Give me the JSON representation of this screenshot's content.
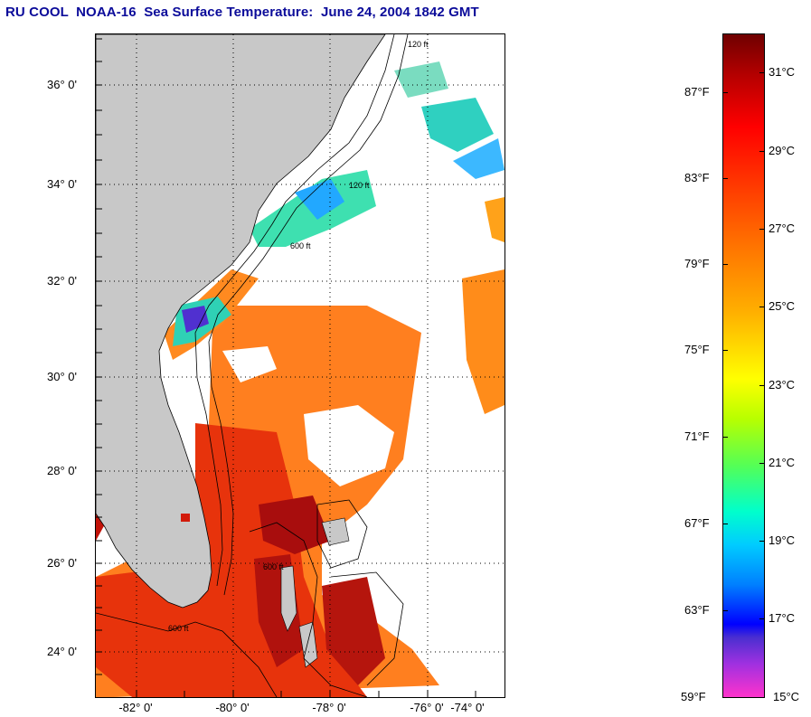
{
  "title": "RU COOL  NOAA-16  Sea Surface Temperature:  June 24, 2004 1842 GMT",
  "map": {
    "lat_labels": [
      "36° 0'",
      "34° 0'",
      "32° 0'",
      "30° 0'",
      "28° 0'",
      "26° 0'",
      "24° 0'"
    ],
    "lon_labels": [
      "-82° 0'",
      "-80° 0'",
      "-78° 0'",
      "-76° 0'",
      "-74° 0'"
    ],
    "contour_labels": [
      "120 ft",
      "600 ft"
    ],
    "colors": {
      "land": "#c8c8c8",
      "cloud": "#ffffff",
      "warm": "#ff7a1a",
      "hot": "#e41a0a",
      "cool": "#33e0c0"
    }
  },
  "colorbar": {
    "fahrenheit": [
      "87°F",
      "83°F",
      "79°F",
      "75°F",
      "71°F",
      "67°F",
      "63°F",
      "59°F"
    ],
    "celsius": [
      "31°C",
      "29°C",
      "27°C",
      "25°C",
      "23°C",
      "21°C",
      "19°C",
      "17°C",
      "15°C"
    ]
  }
}
